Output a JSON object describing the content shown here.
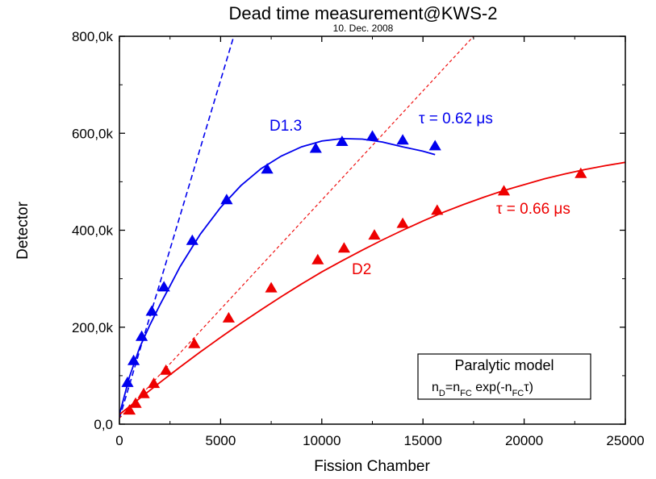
{
  "chart_data": {
    "type": "scatter",
    "title": "Dead time measurement@KWS-2",
    "subtitle": "10. Dec. 2008",
    "xlabel": "Fission Chamber",
    "ylabel": "Detector",
    "xlim": [
      0,
      25000
    ],
    "ylim": [
      0,
      800000
    ],
    "x_ticks": [
      0,
      5000,
      10000,
      15000,
      20000,
      25000
    ],
    "x_tick_labels": [
      "0",
      "5000",
      "10000",
      "15000",
      "20000",
      "25000"
    ],
    "y_ticks": [
      0,
      200000,
      400000,
      600000,
      800000
    ],
    "y_tick_labels": [
      "0,0",
      "200,0k",
      "400,0k",
      "600,0k",
      "800,0k"
    ],
    "series": [
      {
        "name": "D1.3",
        "color": "#0000ee",
        "marker": "triangle",
        "tau_label": "τ = 0.62 μs",
        "points": [
          [
            400,
            85000
          ],
          [
            700,
            130000
          ],
          [
            1100,
            180000
          ],
          [
            1600,
            232000
          ],
          [
            2200,
            282000
          ],
          [
            3600,
            378000
          ],
          [
            5300,
            462000
          ],
          [
            7300,
            525000
          ],
          [
            9700,
            568000
          ],
          [
            11000,
            582000
          ],
          [
            12500,
            593000
          ],
          [
            14000,
            585000
          ],
          [
            15600,
            573000
          ]
        ],
        "fit_curve": [
          [
            0,
            20000
          ],
          [
            500,
            98000
          ],
          [
            1000,
            158000
          ],
          [
            1500,
            204000
          ],
          [
            2000,
            246000
          ],
          [
            2500,
            285000
          ],
          [
            3000,
            325000
          ],
          [
            4000,
            392000
          ],
          [
            5000,
            447000
          ],
          [
            6000,
            492000
          ],
          [
            7000,
            527000
          ],
          [
            8000,
            553000
          ],
          [
            9000,
            572000
          ],
          [
            10000,
            584000
          ],
          [
            11000,
            589000
          ],
          [
            12000,
            588000
          ],
          [
            13000,
            582000
          ],
          [
            14000,
            572000
          ],
          [
            15000,
            563000
          ],
          [
            15600,
            556000
          ]
        ],
        "linear_ref": [
          [
            0,
            12000
          ],
          [
            5650,
            800000
          ]
        ]
      },
      {
        "name": "D2",
        "color": "#ee0000",
        "marker": "triangle",
        "tau_label": "τ = 0.66 μs",
        "points": [
          [
            500,
            28000
          ],
          [
            800,
            42000
          ],
          [
            1200,
            62000
          ],
          [
            1700,
            83000
          ],
          [
            2300,
            110000
          ],
          [
            3700,
            165000
          ],
          [
            5400,
            218000
          ],
          [
            7500,
            280000
          ],
          [
            9800,
            338000
          ],
          [
            11100,
            362000
          ],
          [
            12600,
            389000
          ],
          [
            14000,
            413000
          ],
          [
            15700,
            440000
          ],
          [
            19000,
            480000
          ],
          [
            22800,
            516000
          ]
        ],
        "fit_curve": [
          [
            0,
            20000
          ],
          [
            1000,
            53000
          ],
          [
            2000,
            86000
          ],
          [
            3000,
            118000
          ],
          [
            4000,
            149000
          ],
          [
            5000,
            179000
          ],
          [
            6000,
            208000
          ],
          [
            7000,
            236000
          ],
          [
            8000,
            263000
          ],
          [
            9000,
            289000
          ],
          [
            10000,
            314000
          ],
          [
            11000,
            337000
          ],
          [
            12000,
            359000
          ],
          [
            13000,
            380000
          ],
          [
            14000,
            400000
          ],
          [
            15000,
            419000
          ],
          [
            16000,
            437000
          ],
          [
            17000,
            453000
          ],
          [
            18000,
            468000
          ],
          [
            19000,
            482000
          ],
          [
            20000,
            494000
          ],
          [
            21000,
            506000
          ],
          [
            22000,
            516000
          ],
          [
            23000,
            525000
          ],
          [
            24000,
            533000
          ],
          [
            25000,
            540000
          ]
        ],
        "linear_ref": [
          [
            0,
            12000
          ],
          [
            17500,
            800000
          ]
        ]
      }
    ],
    "legend_box": {
      "title": "Paralytic model",
      "position": "bottom-right"
    }
  }
}
